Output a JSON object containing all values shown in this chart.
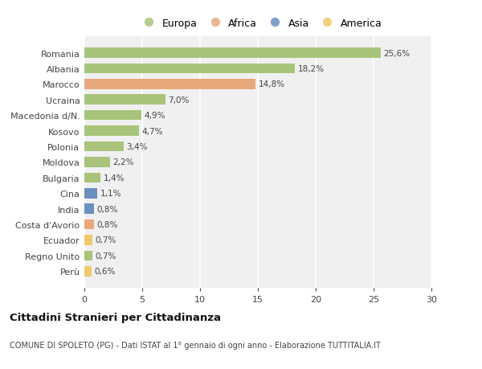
{
  "categories": [
    "Romania",
    "Albania",
    "Marocco",
    "Ucraina",
    "Macedonia d/N.",
    "Kosovo",
    "Polonia",
    "Moldova",
    "Bulgaria",
    "Cina",
    "India",
    "Costa d'Avorio",
    "Ecuador",
    "Regno Unito",
    "Perù"
  ],
  "values": [
    25.6,
    18.2,
    14.8,
    7.0,
    4.9,
    4.7,
    3.4,
    2.2,
    1.4,
    1.1,
    0.8,
    0.8,
    0.7,
    0.7,
    0.6
  ],
  "labels": [
    "25,6%",
    "18,2%",
    "14,8%",
    "7,0%",
    "4,9%",
    "4,7%",
    "3,4%",
    "2,2%",
    "1,4%",
    "1,1%",
    "0,8%",
    "0,8%",
    "0,7%",
    "0,7%",
    "0,6%"
  ],
  "colors": [
    "#a8c47a",
    "#a8c47a",
    "#e8a87c",
    "#a8c47a",
    "#a8c47a",
    "#a8c47a",
    "#a8c47a",
    "#a8c47a",
    "#a8c47a",
    "#6b8fbf",
    "#6b8fbf",
    "#e8a87c",
    "#f0c96e",
    "#a8c47a",
    "#f0c96e"
  ],
  "legend_labels": [
    "Europa",
    "Africa",
    "Asia",
    "America"
  ],
  "legend_colors": [
    "#a8c47a",
    "#e8a87c",
    "#6b8fbf",
    "#f0c96e"
  ],
  "title": "Cittadini Stranieri per Cittadinanza",
  "subtitle": "COMUNE DI SPOLETO (PG) - Dati ISTAT al 1° gennaio di ogni anno - Elaborazione TUTTITALIA.IT",
  "xlim": [
    0,
    30
  ],
  "xticks": [
    0,
    5,
    10,
    15,
    20,
    25,
    30
  ],
  "background_color": "#ffffff",
  "plot_background": "#f0f0f0",
  "grid_color": "#ffffff",
  "bar_height": 0.65
}
